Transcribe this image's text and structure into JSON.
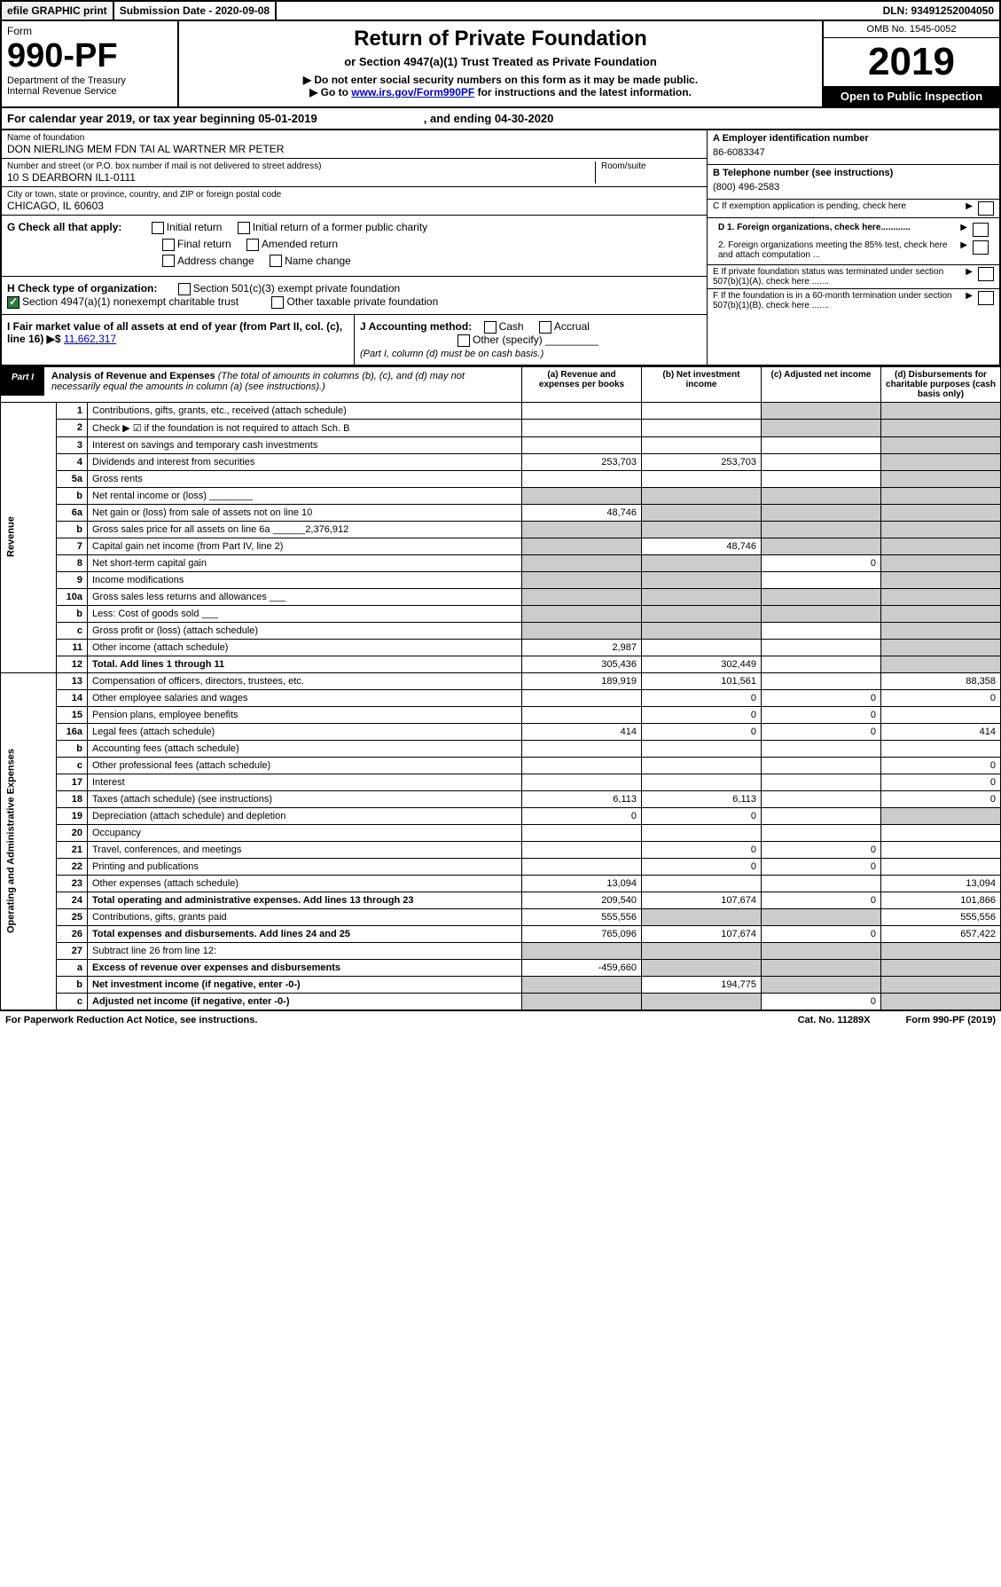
{
  "topbar": {
    "efile": "efile GRAPHIC print",
    "submission_label": "Submission Date - 2020-09-08",
    "dln": "DLN: 93491252004050"
  },
  "header": {
    "form_label": "Form",
    "form_number": "990-PF",
    "dept": "Department of the Treasury",
    "irs": "Internal Revenue Service",
    "title": "Return of Private Foundation",
    "subtitle": "or Section 4947(a)(1) Trust Treated as Private Foundation",
    "note1": "▶ Do not enter social security numbers on this form as it may be made public.",
    "note2_pre": "▶ Go to ",
    "note2_link": "www.irs.gov/Form990PF",
    "note2_post": " for instructions and the latest information.",
    "omb": "OMB No. 1545-0052",
    "year": "2019",
    "open": "Open to Public Inspection"
  },
  "calyear": {
    "pre": "For calendar year 2019, or tax year beginning 05-01-2019",
    "end": ", and ending 04-30-2020"
  },
  "foundation": {
    "name_label": "Name of foundation",
    "name": "DON NIERLING MEM FDN TAI AL WARTNER MR PETER",
    "addr_label": "Number and street (or P.O. box number if mail is not delivered to street address)",
    "room_label": "Room/suite",
    "addr": "10 S DEARBORN IL1-0111",
    "city_label": "City or town, state or province, country, and ZIP or foreign postal code",
    "city": "CHICAGO, IL  60603",
    "ein_label": "A Employer identification number",
    "ein": "86-6083347",
    "phone_label": "B Telephone number (see instructions)",
    "phone": "(800) 496-2583",
    "c_label": "C If exemption application is pending, check here",
    "d1": "D 1. Foreign organizations, check here............",
    "d2": "2. Foreign organizations meeting the 85% test, check here and attach computation ...",
    "e_label": "E If private foundation status was terminated under section 507(b)(1)(A), check here .......",
    "f_label": "F If the foundation is in a 60-month termination under section 507(b)(1)(B), check here ......."
  },
  "sectionG": {
    "label": "G Check all that apply:",
    "initial": "Initial return",
    "initial_former": "Initial return of a former public charity",
    "final": "Final return",
    "amended": "Amended return",
    "addr_change": "Address change",
    "name_change": "Name change"
  },
  "sectionH": {
    "label": "H Check type of organization:",
    "c3": "Section 501(c)(3) exempt private foundation",
    "trust": "Section 4947(a)(1) nonexempt charitable trust",
    "other_tax": "Other taxable private foundation"
  },
  "sectionI": {
    "label": "I Fair market value of all assets at end of year (from Part II, col. (c), line 16) ▶$ ",
    "value": "11,662,317"
  },
  "sectionJ": {
    "label": "J Accounting method:",
    "cash": "Cash",
    "accrual": "Accrual",
    "other": "Other (specify)",
    "note": "(Part I, column (d) must be on cash basis.)"
  },
  "part1": {
    "label": "Part I",
    "title": "Analysis of Revenue and Expenses",
    "note": "(The total of amounts in columns (b), (c), and (d) may not necessarily equal the amounts in column (a) (see instructions).)",
    "col_a": "(a) Revenue and expenses per books",
    "col_b": "(b) Net investment income",
    "col_c": "(c) Adjusted net income",
    "col_d": "(d) Disbursements for charitable purposes (cash basis only)",
    "revenue_label": "Revenue",
    "expenses_label": "Operating and Administrative Expenses"
  },
  "rows": [
    {
      "n": "1",
      "d": "Contributions, gifts, grants, etc., received (attach schedule)",
      "a": "",
      "b": "",
      "c": "s",
      "dd": "s"
    },
    {
      "n": "2",
      "d": "Check ▶ ☑ if the foundation is not required to attach Sch. B",
      "a": "",
      "b": "",
      "c": "s",
      "dd": "s",
      "bold_not": true
    },
    {
      "n": "3",
      "d": "Interest on savings and temporary cash investments",
      "a": "",
      "b": "",
      "c": "",
      "dd": "s"
    },
    {
      "n": "4",
      "d": "Dividends and interest from securities",
      "a": "253,703",
      "b": "253,703",
      "c": "",
      "dd": "s"
    },
    {
      "n": "5a",
      "d": "Gross rents",
      "a": "",
      "b": "",
      "c": "",
      "dd": "s"
    },
    {
      "n": "b",
      "d": "Net rental income or (loss) ________",
      "a": "s",
      "b": "s",
      "c": "s",
      "dd": "s"
    },
    {
      "n": "6a",
      "d": "Net gain or (loss) from sale of assets not on line 10",
      "a": "48,746",
      "b": "s",
      "c": "s",
      "dd": "s"
    },
    {
      "n": "b",
      "d": "Gross sales price for all assets on line 6a ______2,376,912",
      "a": "s",
      "b": "s",
      "c": "s",
      "dd": "s"
    },
    {
      "n": "7",
      "d": "Capital gain net income (from Part IV, line 2)",
      "a": "s",
      "b": "48,746",
      "c": "s",
      "dd": "s"
    },
    {
      "n": "8",
      "d": "Net short-term capital gain",
      "a": "s",
      "b": "s",
      "c": "0",
      "dd": "s"
    },
    {
      "n": "9",
      "d": "Income modifications",
      "a": "s",
      "b": "s",
      "c": "",
      "dd": "s"
    },
    {
      "n": "10a",
      "d": "Gross sales less returns and allowances ___",
      "a": "s",
      "b": "s",
      "c": "s",
      "dd": "s"
    },
    {
      "n": "b",
      "d": "Less: Cost of goods sold      ___",
      "a": "s",
      "b": "s",
      "c": "s",
      "dd": "s"
    },
    {
      "n": "c",
      "d": "Gross profit or (loss) (attach schedule)",
      "a": "s",
      "b": "s",
      "c": "",
      "dd": "s"
    },
    {
      "n": "11",
      "d": "Other income (attach schedule)",
      "a": "2,987",
      "b": "",
      "c": "",
      "dd": "s"
    },
    {
      "n": "12",
      "d": "Total. Add lines 1 through 11",
      "a": "305,436",
      "b": "302,449",
      "c": "",
      "dd": "s",
      "bold": true
    },
    {
      "n": "13",
      "d": "Compensation of officers, directors, trustees, etc.",
      "a": "189,919",
      "b": "101,561",
      "c": "",
      "dd": "88,358"
    },
    {
      "n": "14",
      "d": "Other employee salaries and wages",
      "a": "",
      "b": "0",
      "c": "0",
      "dd": "0"
    },
    {
      "n": "15",
      "d": "Pension plans, employee benefits",
      "a": "",
      "b": "0",
      "c": "0",
      "dd": ""
    },
    {
      "n": "16a",
      "d": "Legal fees (attach schedule)",
      "a": "414",
      "b": "0",
      "c": "0",
      "dd": "414"
    },
    {
      "n": "b",
      "d": "Accounting fees (attach schedule)",
      "a": "",
      "b": "",
      "c": "",
      "dd": ""
    },
    {
      "n": "c",
      "d": "Other professional fees (attach schedule)",
      "a": "",
      "b": "",
      "c": "",
      "dd": "0"
    },
    {
      "n": "17",
      "d": "Interest",
      "a": "",
      "b": "",
      "c": "",
      "dd": "0"
    },
    {
      "n": "18",
      "d": "Taxes (attach schedule) (see instructions)",
      "a": "6,113",
      "b": "6,113",
      "c": "",
      "dd": "0"
    },
    {
      "n": "19",
      "d": "Depreciation (attach schedule) and depletion",
      "a": "0",
      "b": "0",
      "c": "",
      "dd": "s"
    },
    {
      "n": "20",
      "d": "Occupancy",
      "a": "",
      "b": "",
      "c": "",
      "dd": ""
    },
    {
      "n": "21",
      "d": "Travel, conferences, and meetings",
      "a": "",
      "b": "0",
      "c": "0",
      "dd": ""
    },
    {
      "n": "22",
      "d": "Printing and publications",
      "a": "",
      "b": "0",
      "c": "0",
      "dd": ""
    },
    {
      "n": "23",
      "d": "Other expenses (attach schedule)",
      "a": "13,094",
      "b": "",
      "c": "",
      "dd": "13,094"
    },
    {
      "n": "24",
      "d": "Total operating and administrative expenses. Add lines 13 through 23",
      "a": "209,540",
      "b": "107,674",
      "c": "0",
      "dd": "101,866",
      "bold": true
    },
    {
      "n": "25",
      "d": "Contributions, gifts, grants paid",
      "a": "555,556",
      "b": "s",
      "c": "s",
      "dd": "555,556"
    },
    {
      "n": "26",
      "d": "Total expenses and disbursements. Add lines 24 and 25",
      "a": "765,096",
      "b": "107,674",
      "c": "0",
      "dd": "657,422",
      "bold": true
    },
    {
      "n": "27",
      "d": "Subtract line 26 from line 12:",
      "a": "s",
      "b": "s",
      "c": "s",
      "dd": "s"
    },
    {
      "n": "a",
      "d": "Excess of revenue over expenses and disbursements",
      "a": "-459,660",
      "b": "s",
      "c": "s",
      "dd": "s",
      "bold": true
    },
    {
      "n": "b",
      "d": "Net investment income (if negative, enter -0-)",
      "a": "s",
      "b": "194,775",
      "c": "s",
      "dd": "s",
      "bold": true
    },
    {
      "n": "c",
      "d": "Adjusted net income (if negative, enter -0-)",
      "a": "s",
      "b": "s",
      "c": "0",
      "dd": "s",
      "bold": true
    }
  ],
  "footer": {
    "left": "For Paperwork Reduction Act Notice, see instructions.",
    "center": "Cat. No. 11289X",
    "right": "Form 990-PF (2019)"
  }
}
